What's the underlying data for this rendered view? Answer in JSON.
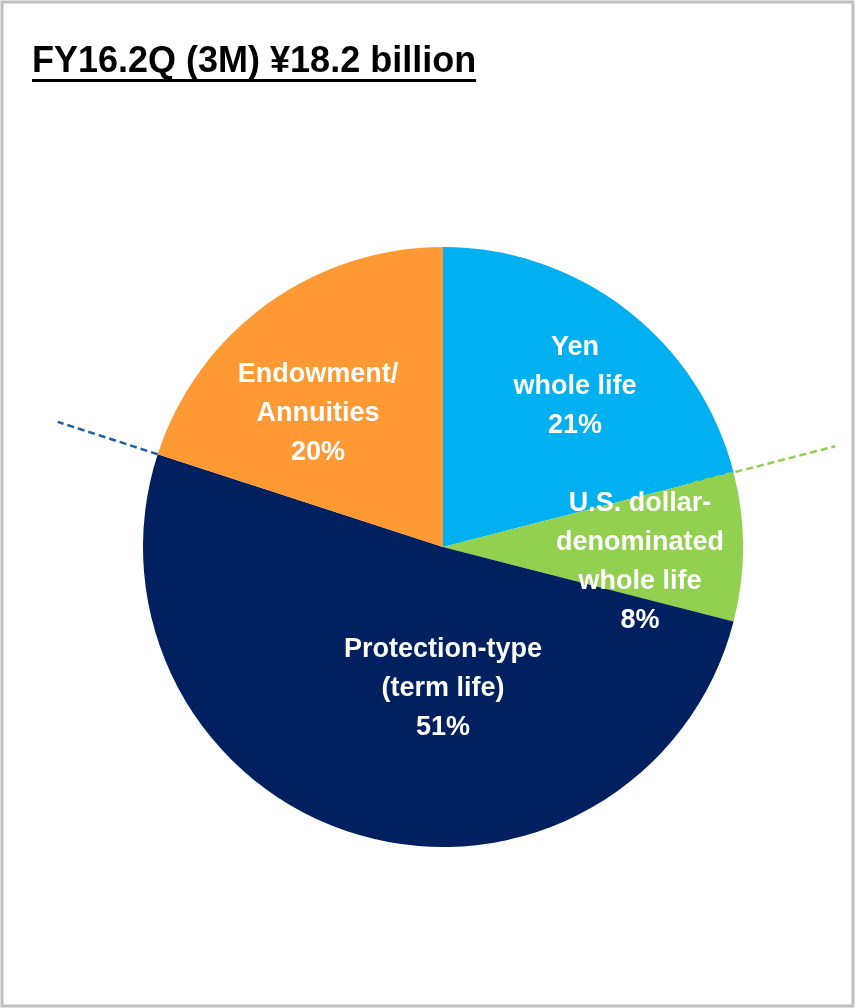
{
  "chart_data": {
    "type": "pie",
    "title": "FY16.2Q (3M) ¥18.2 billion",
    "categories": [
      "Yen\nwhole life",
      "U.S. dollar-\ndenominated\nwhole life",
      "Protection-type\n(term life)",
      "Endowment/\nAnnuities"
    ],
    "values": [
      21,
      8,
      51,
      20
    ],
    "colors": [
      "#00b0f0",
      "#92d050",
      "#002060",
      "#ff9933"
    ],
    "value_labels": [
      "21%",
      "8%",
      "51%",
      "20%"
    ]
  }
}
